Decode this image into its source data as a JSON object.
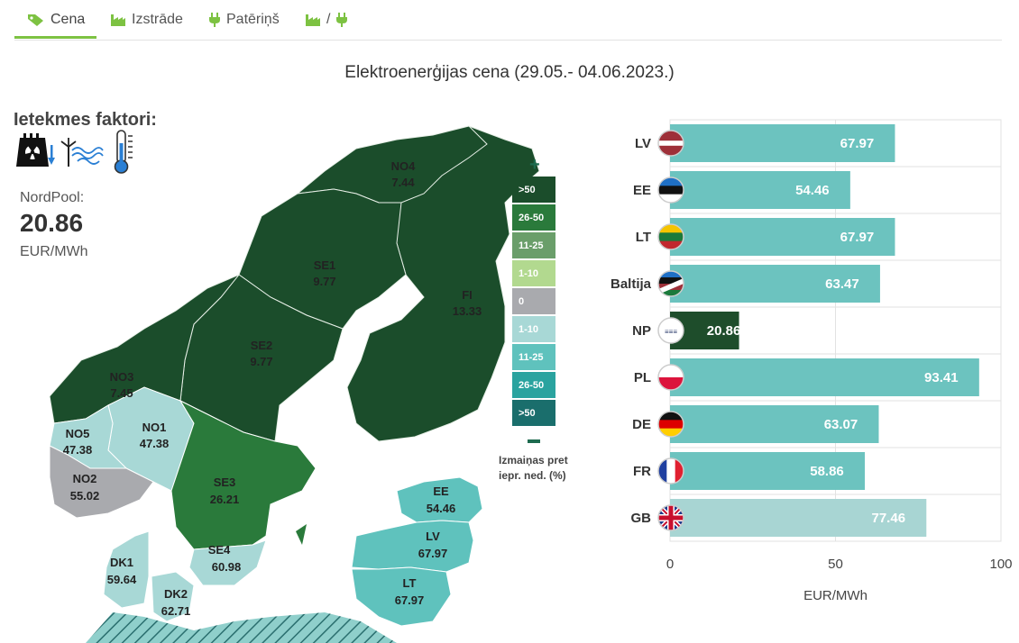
{
  "tabs": [
    {
      "label": "Cena",
      "icon": "tag-icon",
      "active": true
    },
    {
      "label": "Izstrāde",
      "icon": "factory-icon",
      "active": false
    },
    {
      "label": "Patēriņš",
      "icon": "plug-icon",
      "active": false
    },
    {
      "label": "/",
      "icon": "factory-plug-icon",
      "active": false
    }
  ],
  "title": "Elektroenerģijas cena (29.05.- 04.06.2023.)",
  "factors": {
    "heading": "Ietekmes faktori:",
    "icons": [
      "nuclear-plant-down-icon",
      "wind-water-icon",
      "thermometer-icon"
    ]
  },
  "nordpool": {
    "label": "NordPool:",
    "value": "20.86",
    "unit": "EUR/MWh"
  },
  "colors": {
    "accent": "#7dc242",
    "bar": "#6cc3bf",
    "bar_np": "#1e4d2b",
    "bar_gb": "#a8d5d3"
  },
  "map": {
    "regions": [
      {
        "id": "NO4",
        "value": "7.44"
      },
      {
        "id": "SE1",
        "value": "9.77"
      },
      {
        "id": "FI",
        "value": "13.33"
      },
      {
        "id": "SE2",
        "value": "9.77"
      },
      {
        "id": "NO3",
        "value": "7.45"
      },
      {
        "id": "NO1",
        "value": "47.38"
      },
      {
        "id": "NO5",
        "value": "47.38"
      },
      {
        "id": "NO2",
        "value": "55.02"
      },
      {
        "id": "SE3",
        "value": "26.21"
      },
      {
        "id": "SE4",
        "value": "60.98"
      },
      {
        "id": "DK1",
        "value": "59.64"
      },
      {
        "id": "DK2",
        "value": "62.71"
      },
      {
        "id": "EE",
        "value": "54.46"
      },
      {
        "id": "LV",
        "value": "67.97"
      },
      {
        "id": "LT",
        "value": "67.97"
      }
    ],
    "legend": [
      {
        "label": ">50",
        "color": "#1b4d2b"
      },
      {
        "label": "26-50",
        "color": "#2a7a3b"
      },
      {
        "label": "11-25",
        "color": "#6a9e6a"
      },
      {
        "label": "1-10",
        "color": "#b2d98f"
      },
      {
        "label": "0",
        "color": "#a9aaae"
      },
      {
        "label": "1-10",
        "color": "#a8d8d6"
      },
      {
        "label": "11-25",
        "color": "#5fc2bd"
      },
      {
        "label": "26-50",
        "color": "#2aa39f"
      },
      {
        "label": ">50",
        "color": "#1a6e6c"
      }
    ],
    "legend_note_line1": "Izmaiņas pret",
    "legend_note_line2": "iepr. ned. (%)"
  },
  "chart_data": {
    "type": "bar",
    "orientation": "horizontal",
    "categories": [
      "LV",
      "EE",
      "LT",
      "Baltija",
      "NP",
      "PL",
      "DE",
      "FR",
      "GB"
    ],
    "values": [
      67.97,
      54.46,
      67.97,
      63.47,
      20.86,
      93.41,
      63.07,
      58.86,
      77.46
    ],
    "data_labels": [
      "67.97",
      "54.46",
      "67.97",
      "63.47",
      "20.86",
      "93.41",
      "63.07",
      "58.86",
      "77.46"
    ],
    "flags": [
      "latvia-flag-icon",
      "estonia-flag-icon",
      "lithuania-flag-icon",
      "baltics-flag-icon",
      "nordpool-logo-icon",
      "poland-flag-icon",
      "germany-flag-icon",
      "france-flag-icon",
      "uk-flag-icon"
    ],
    "xlabel": "EUR/MWh",
    "xlim": [
      0,
      100
    ],
    "xticks": [
      "0",
      "50",
      "100"
    ],
    "grid": true
  }
}
